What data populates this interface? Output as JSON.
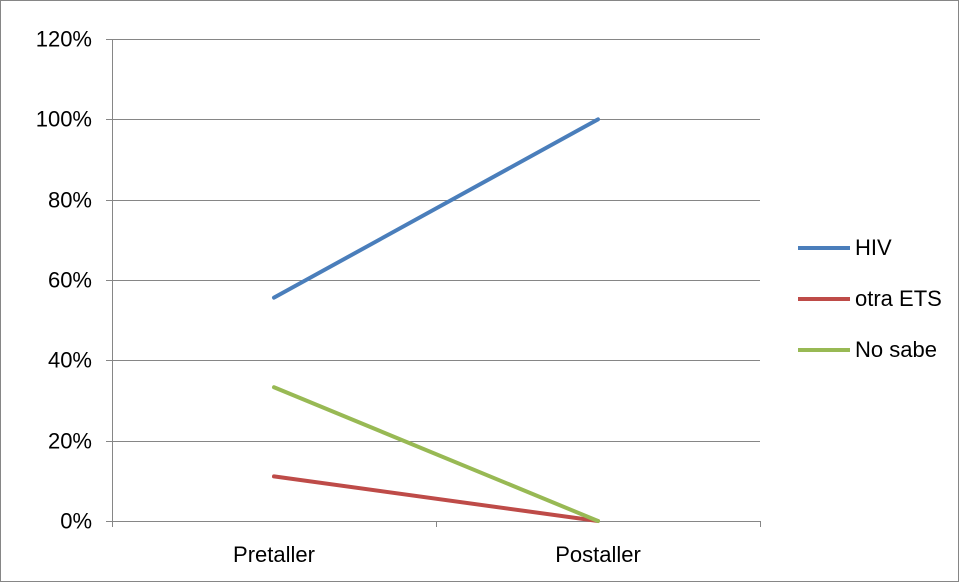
{
  "chart_data": {
    "type": "line",
    "categories": [
      "Pretaller",
      "Postaller"
    ],
    "series": [
      {
        "name": "HIV",
        "values": [
          55.6,
          100
        ],
        "color": "#4A7EBB"
      },
      {
        "name": "otra ETS",
        "values": [
          11.1,
          0
        ],
        "color": "#BE4B48"
      },
      {
        "name": "No sabe",
        "values": [
          33.3,
          0
        ],
        "color": "#98B954"
      }
    ],
    "ylim": [
      0,
      120
    ],
    "yticks": [
      0,
      20,
      40,
      60,
      80,
      100,
      120
    ],
    "ytick_labels": [
      "0%",
      "20%",
      "40%",
      "60%",
      "80%",
      "100%",
      "120%"
    ],
    "grid": true,
    "legend": "right",
    "colors": {
      "gridline": "#868686",
      "axis": "#868686",
      "frame": "#868686",
      "text": "#000000"
    }
  }
}
